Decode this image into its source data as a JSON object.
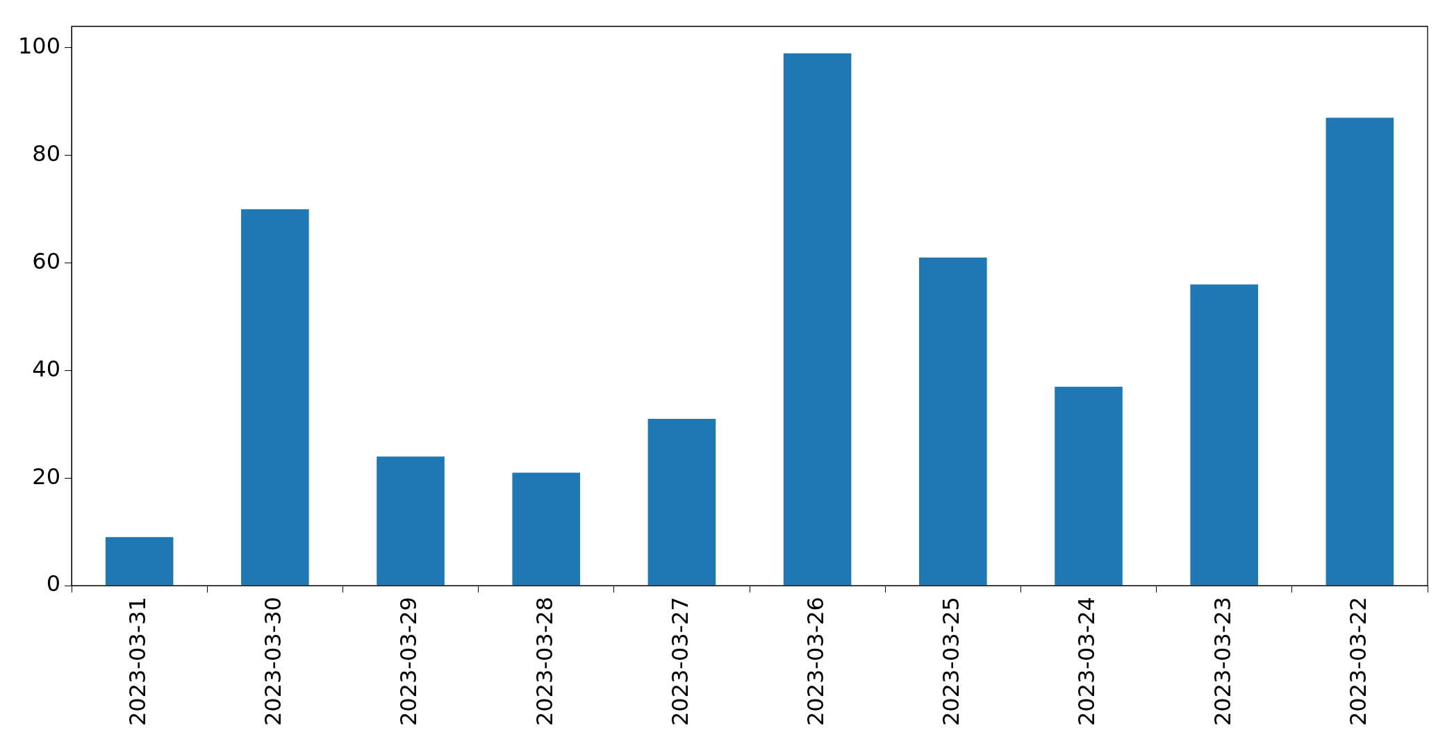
{
  "chart_data": {
    "type": "bar",
    "categories": [
      "2023-03-31",
      "2023-03-30",
      "2023-03-29",
      "2023-03-28",
      "2023-03-27",
      "2023-03-26",
      "2023-03-25",
      "2023-03-24",
      "2023-03-23",
      "2023-03-22"
    ],
    "values": [
      9,
      70,
      24,
      21,
      31,
      99,
      61,
      37,
      56,
      87
    ],
    "color": "#1f77b4",
    "ylim": [
      0,
      104
    ],
    "yticks": [
      0,
      20,
      40,
      60,
      80,
      100
    ],
    "grid": false,
    "legend": false
  }
}
